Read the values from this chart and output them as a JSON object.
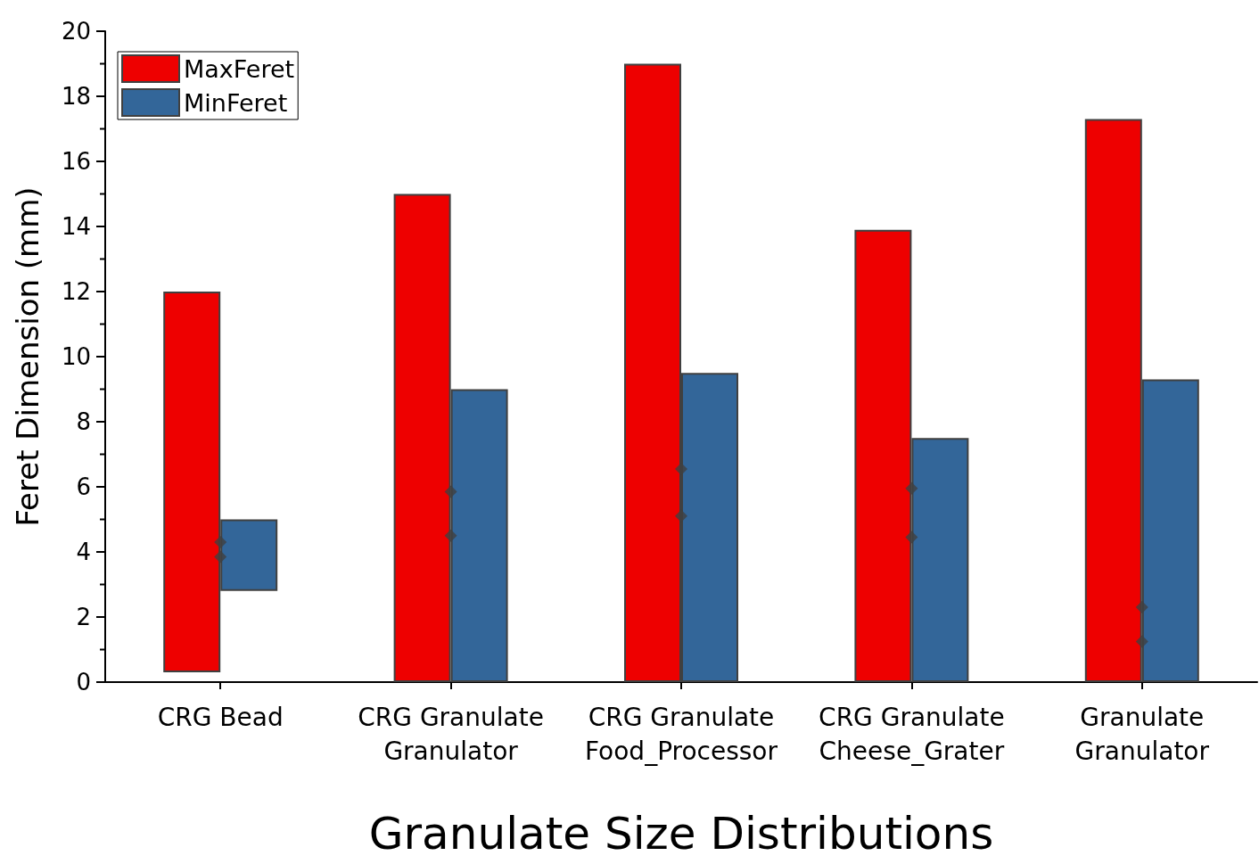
{
  "chart_data": {
    "type": "bar",
    "xlabel": "Granulate Size Distributions",
    "ylabel": "Feret Dimension (mm)",
    "categories": [
      "CRG Bead",
      "CRG Granulate\nGranulator",
      "CRG Granulate\nFood_Processor",
      "CRG Granulate\nCheese_Grater",
      "Granulate\nGranulator"
    ],
    "series": [
      {
        "name": "MaxFeret",
        "color": "#ee0000",
        "base": [
          0.3,
          0,
          0,
          0,
          0
        ],
        "values": [
          11.7,
          15.0,
          19.0,
          13.9,
          17.3
        ]
      },
      {
        "name": "MinFeret",
        "color": "#336699",
        "base": [
          2.8,
          0,
          0,
          0,
          0
        ],
        "values": [
          2.2,
          9.0,
          9.5,
          7.5,
          9.3
        ]
      },
      {
        "type": "scatter",
        "color": "#404040",
        "x": [
          "CRG Bead",
          "CRG Granulate\nGranulator",
          "CRG Granulate\nFood_Processor",
          "CRG Granulate\nCheese_Grater",
          "Granulate\nGranulator"
        ],
        "values": [
          4.3,
          5.85,
          6.55,
          5.95,
          2.3
        ]
      },
      {
        "type": "scatter",
        "color": "#404040",
        "x": [
          "CRG Bead",
          "CRG Granulate\nGranulator",
          "CRG Granulate\nFood_Processor",
          "CRG Granulate\nCheese_Grater",
          "Granulate\nGranulator"
        ],
        "values": [
          3.85,
          4.5,
          5.1,
          4.45,
          1.25
        ]
      }
    ],
    "ylim": [
      0,
      20
    ],
    "yticks": [
      0,
      2,
      4,
      6,
      8,
      10,
      12,
      14,
      16,
      18,
      20
    ],
    "grid": false,
    "legend": "top left",
    "marker": "diamond"
  }
}
